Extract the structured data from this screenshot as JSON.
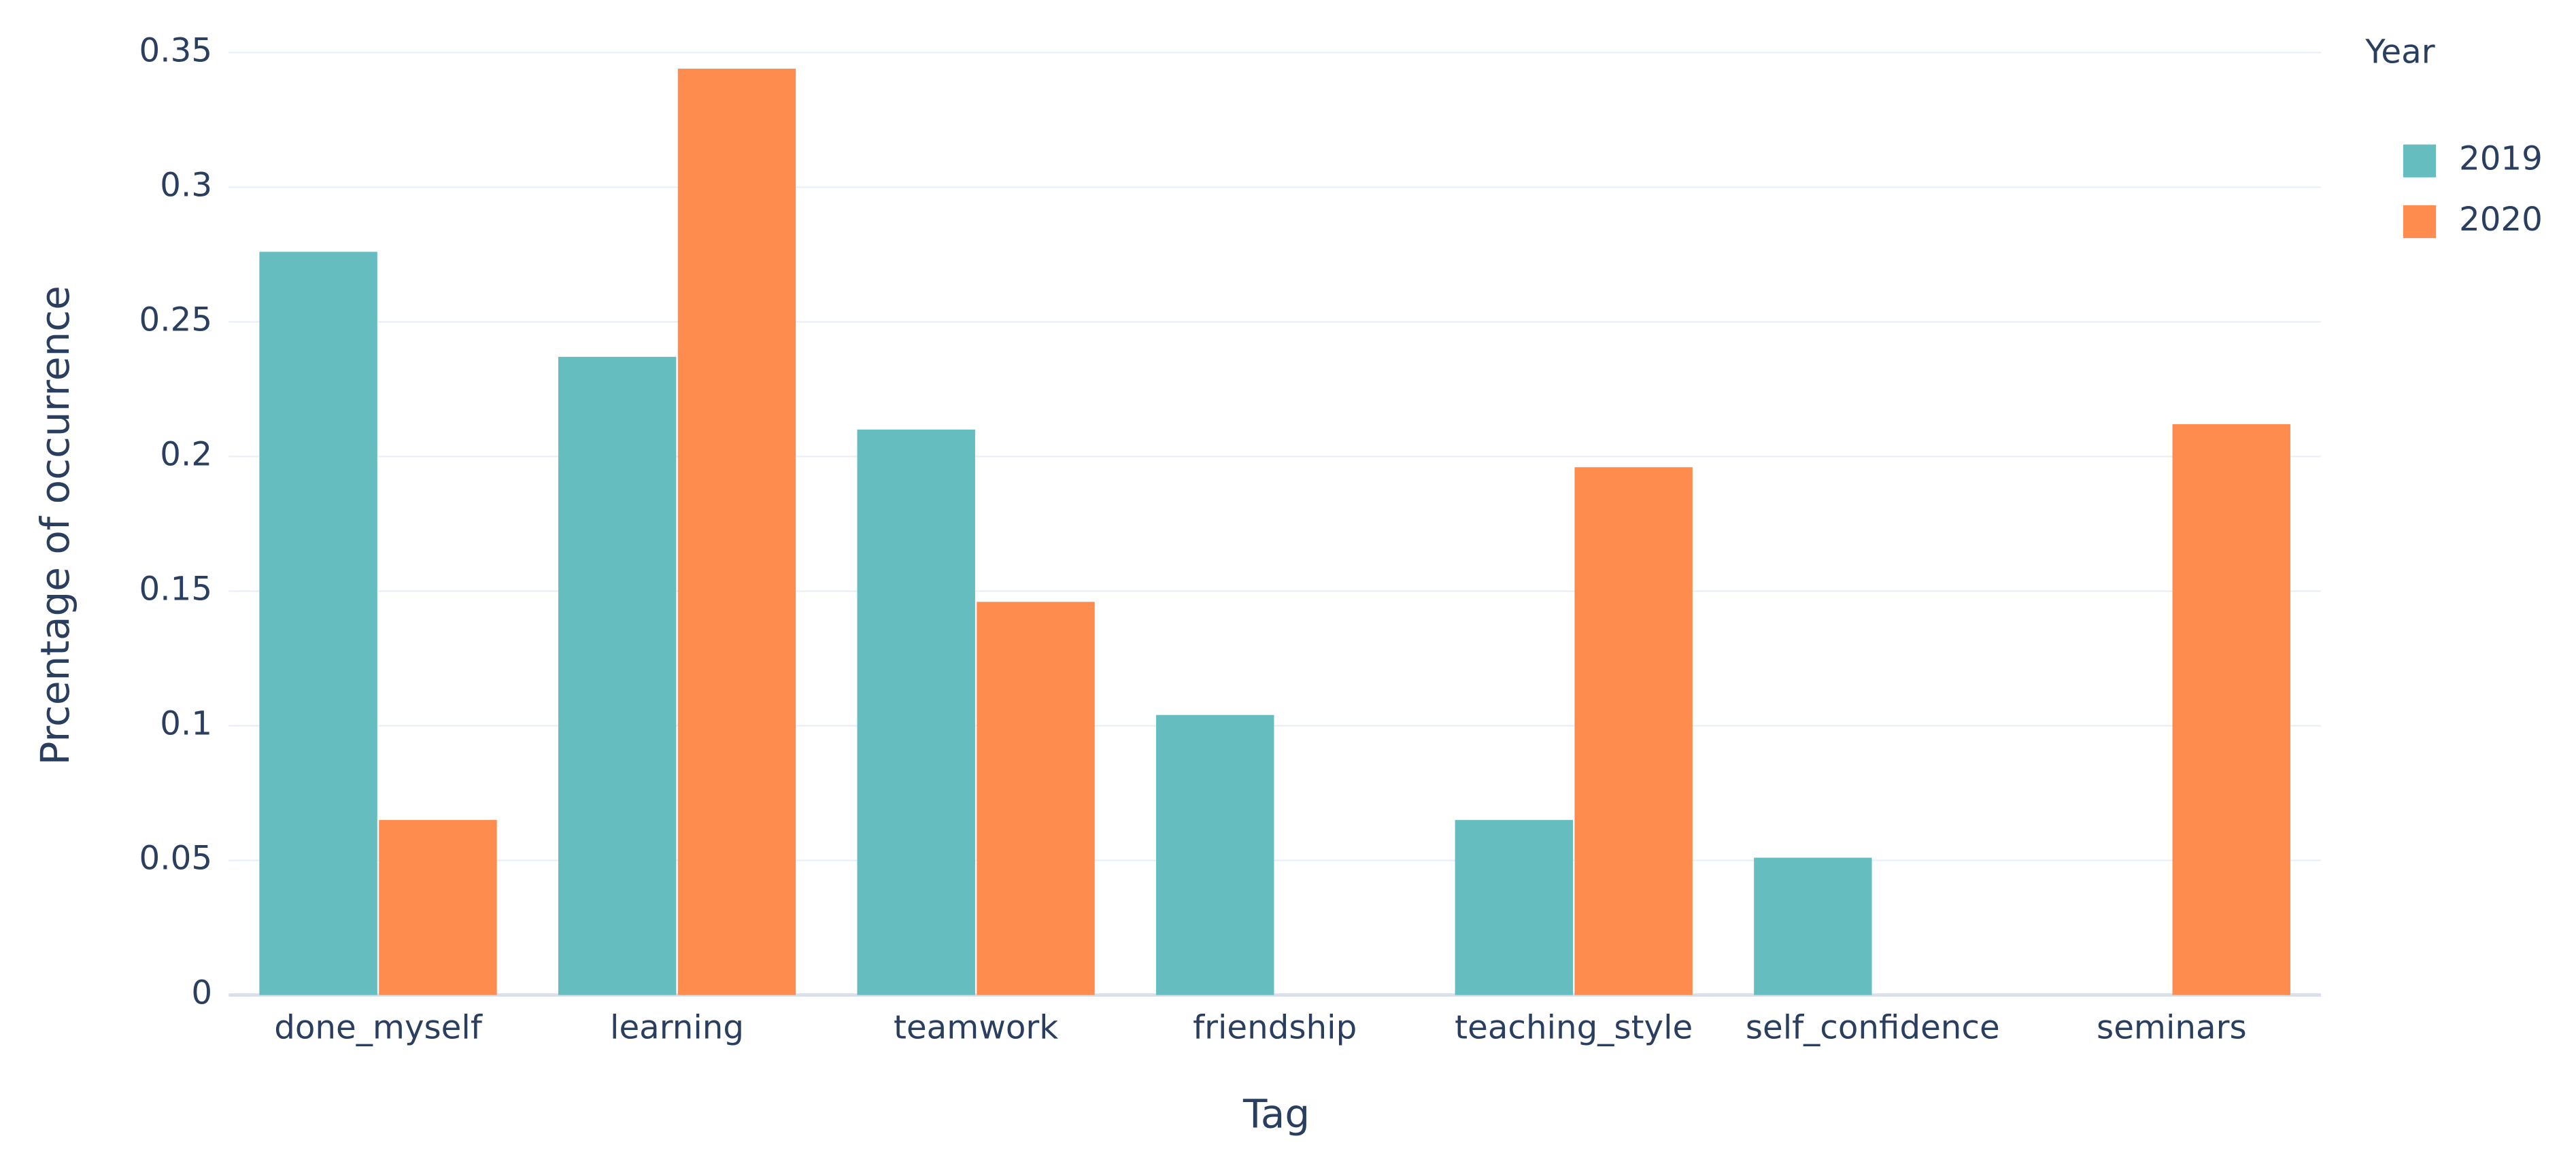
{
  "chart_data": {
    "type": "bar",
    "x_label": "Tag",
    "y_label": "Prcentage of occurrence",
    "categories": [
      "done_myself",
      "learning",
      "teamwork",
      "friendship",
      "teaching_style",
      "self_confidence",
      "seminars"
    ],
    "series": [
      {
        "name": "2019",
        "color": "#66bdbf",
        "values": [
          0.276,
          0.237,
          0.21,
          0.104,
          0.065,
          0.051,
          null
        ]
      },
      {
        "name": "2020",
        "color": "#fd8c4e",
        "values": [
          0.065,
          0.344,
          0.146,
          null,
          0.196,
          null,
          0.212
        ]
      }
    ],
    "legend_title": "Year",
    "legend": "top-right",
    "ylim": [
      0,
      0.35
    ],
    "yticks": [
      0,
      0.05,
      0.1,
      0.15,
      0.2,
      0.25,
      0.3,
      0.35
    ],
    "grid": true
  }
}
